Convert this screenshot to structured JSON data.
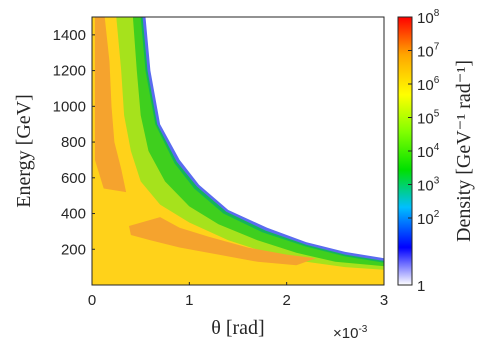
{
  "chart_data": {
    "type": "heatmap",
    "subtype": "filled-contour",
    "xlabel": "θ [rad]",
    "x_multiplier": "×10",
    "x_multiplier_exp": "-3",
    "ylabel": "Energy [GeV]",
    "xlim": [
      0,
      0.003
    ],
    "ylim": [
      0,
      1500
    ],
    "x_ticks": [
      0,
      0.001,
      0.002,
      0.003
    ],
    "x_tick_labels": [
      "0",
      "1",
      "2",
      "3"
    ],
    "y_ticks": [
      200,
      400,
      600,
      800,
      1000,
      1200,
      1400
    ],
    "y_tick_labels": [
      "200",
      "400",
      "600",
      "800",
      "1000",
      "1200",
      "1400"
    ],
    "colorbar": {
      "label": "Density [GeV⁻¹ rad⁻¹]",
      "scale": "log",
      "range": [
        1,
        100000000
      ],
      "tick_labels": [
        {
          "base": "1",
          "exp": ""
        },
        {
          "base": "10",
          "exp": "2"
        },
        {
          "base": "10",
          "exp": "3"
        },
        {
          "base": "10",
          "exp": "4"
        },
        {
          "base": "10",
          "exp": "5"
        },
        {
          "base": "10",
          "exp": "6"
        },
        {
          "base": "10",
          "exp": "7"
        },
        {
          "base": "10",
          "exp": "8"
        }
      ],
      "colormap_stops": [
        "#ffffff",
        "#0000ff",
        "#00bfff",
        "#00e000",
        "#80ff00",
        "#ffff00",
        "#ffa500",
        "#ff0000"
      ]
    },
    "contour_levels": [
      {
        "name": "1e1",
        "color": "#5a6bf0",
        "boundary": [
          [
            0.00055,
            1500
          ],
          [
            0.0006,
            1200
          ],
          [
            0.0007,
            900
          ],
          [
            0.0009,
            700
          ],
          [
            0.0011,
            560
          ],
          [
            0.0014,
            420
          ],
          [
            0.0018,
            320
          ],
          [
            0.0022,
            240
          ],
          [
            0.0026,
            185
          ],
          [
            0.003,
            150
          ],
          [
            0.003,
            0
          ],
          [
            0,
            0
          ],
          [
            0,
            1500
          ]
        ]
      },
      {
        "name": "1e3",
        "color": "#14b45a",
        "boundary": [
          [
            0.00052,
            1500
          ],
          [
            0.00057,
            1200
          ],
          [
            0.00067,
            900
          ],
          [
            0.00087,
            690
          ],
          [
            0.00108,
            550
          ],
          [
            0.00138,
            410
          ],
          [
            0.00178,
            305
          ],
          [
            0.0022,
            225
          ],
          [
            0.0026,
            170
          ],
          [
            0.003,
            135
          ],
          [
            0.003,
            0
          ],
          [
            0,
            0
          ],
          [
            0,
            1500
          ]
        ]
      },
      {
        "name": "1e4",
        "color": "#3fcf1e",
        "boundary": [
          [
            0.0005,
            1500
          ],
          [
            0.00055,
            1200
          ],
          [
            0.00065,
            900
          ],
          [
            0.00085,
            680
          ],
          [
            0.00105,
            540
          ],
          [
            0.00135,
            400
          ],
          [
            0.00175,
            295
          ],
          [
            0.0022,
            215
          ],
          [
            0.0026,
            160
          ],
          [
            0.003,
            125
          ],
          [
            0.003,
            0
          ],
          [
            0,
            0
          ],
          [
            0,
            1500
          ]
        ]
      },
      {
        "name": "1e5",
        "color": "#a6e21c",
        "boundary": [
          [
            0.00042,
            1500
          ],
          [
            0.00046,
            1200
          ],
          [
            0.0005,
            950
          ],
          [
            0.00058,
            750
          ],
          [
            0.00075,
            580
          ],
          [
            0.001,
            440
          ],
          [
            0.0013,
            340
          ],
          [
            0.0017,
            250
          ],
          [
            0.0021,
            180
          ],
          [
            0.0025,
            130
          ],
          [
            0.003,
            105
          ],
          [
            0.003,
            0
          ],
          [
            0,
            0
          ],
          [
            0,
            1500
          ]
        ]
      },
      {
        "name": "1e6",
        "color": "#ffd21a",
        "boundary": [
          [
            0.00025,
            1500
          ],
          [
            0.0003,
            1200
          ],
          [
            0.00033,
            950
          ],
          [
            0.0004,
            750
          ],
          [
            0.0005,
            580
          ],
          [
            0.0007,
            450
          ],
          [
            0.001,
            350
          ],
          [
            0.0014,
            250
          ],
          [
            0.0018,
            180
          ],
          [
            0.0022,
            130
          ],
          [
            0.0026,
            100
          ],
          [
            0.003,
            85
          ],
          [
            0.003,
            0
          ],
          [
            0,
            0
          ],
          [
            0,
            1500
          ]
        ]
      },
      {
        "name": "1e6.5",
        "color": "#f5a32e",
        "boundary": [
          [
            3e-05,
            1500
          ],
          [
            0.00013,
            1500
          ],
          [
            0.00018,
            1250
          ],
          [
            0.0002,
            1000
          ],
          [
            0.00023,
            800
          ],
          [
            0.0003,
            650
          ],
          [
            0.00035,
            520
          ],
          [
            0.00012,
            540
          ],
          [
            3e-05,
            700
          ]
        ]
      },
      {
        "name": "1e6.5-band",
        "color": "#f5a32e",
        "boundary": [
          [
            0.00038,
            330
          ],
          [
            0.0007,
            380
          ],
          [
            0.0009,
            320
          ],
          [
            0.0012,
            270
          ],
          [
            0.0016,
            210
          ],
          [
            0.002,
            170
          ],
          [
            0.0023,
            150
          ],
          [
            0.0021,
            110
          ],
          [
            0.0017,
            130
          ],
          [
            0.0013,
            170
          ],
          [
            0.0009,
            210
          ],
          [
            0.0006,
            250
          ],
          [
            0.0004,
            280
          ]
        ]
      }
    ]
  }
}
